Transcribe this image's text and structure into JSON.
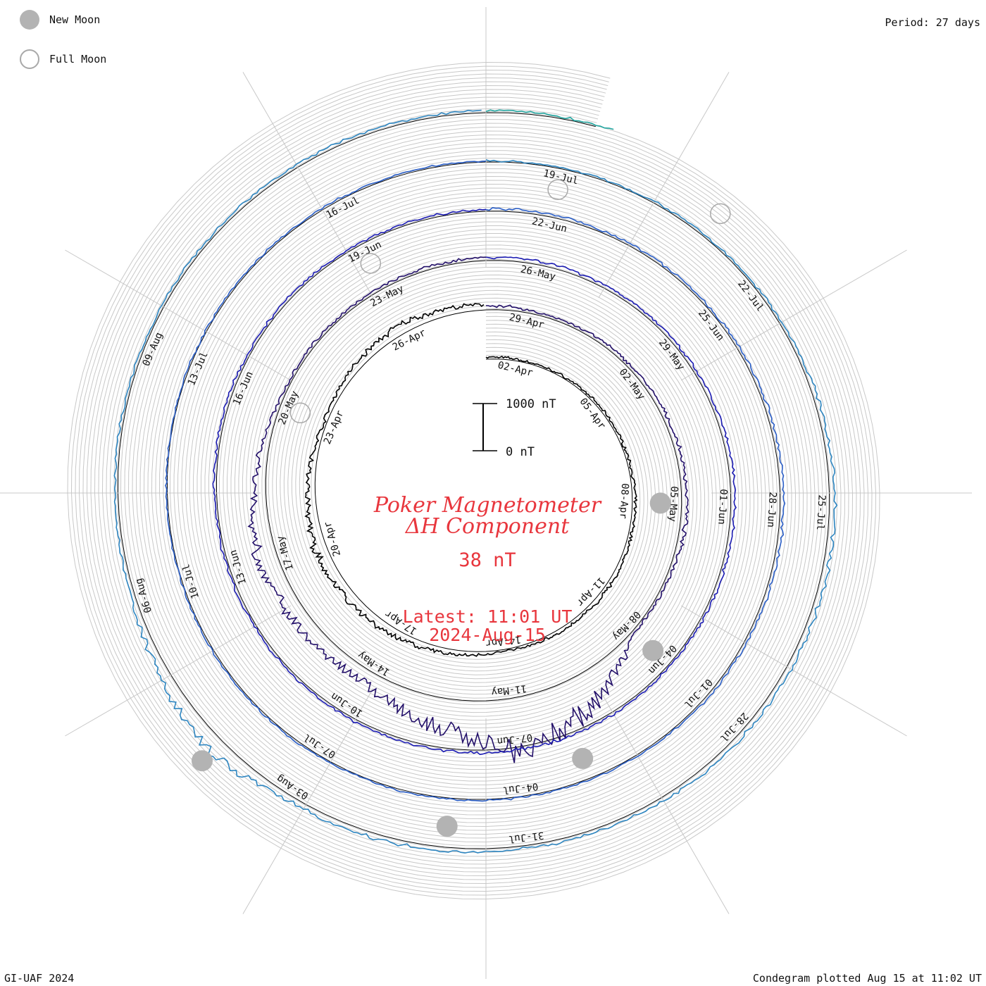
{
  "legend": {
    "new_moon": {
      "label": "New Moon",
      "color": "#b3b3b3"
    },
    "full_moon": {
      "label": "Full Moon",
      "color": "#a9a9a9"
    }
  },
  "period_label": "Period: 27 days",
  "footer": {
    "left": "GI-UAF 2024",
    "right": "Condegram plotted Aug 15 at 11:02 UT"
  },
  "chart_data": {
    "type": "line",
    "subtype": "condegram spiral",
    "title": "Poker Magnetometer",
    "subtitle": "ΔH Component",
    "current_value": "38 nT",
    "latest_time": "Latest: 11:01 UT",
    "latest_date": "2024-Aug-15",
    "scale": {
      "top_label": "1000 nT",
      "bottom_label": "0 nT",
      "range_nT": [
        0,
        1000
      ]
    },
    "period_days": 27,
    "start_date": "2024-04-01",
    "end_date": "2024-08-15",
    "date_labels": [
      "02-Apr",
      "05-Apr",
      "08-Apr",
      "11-Apr",
      "14-Apr",
      "17-Apr",
      "20-Apr",
      "23-Apr",
      "26-Apr",
      "29-Apr",
      "02-May",
      "05-May",
      "08-May",
      "11-May",
      "14-May",
      "17-May",
      "20-May",
      "23-May",
      "26-May",
      "29-May",
      "01-Jun",
      "04-Jun",
      "07-Jun",
      "10-Jun",
      "13-Jun",
      "16-Jun",
      "19-Jun",
      "22-Jun",
      "25-Jun",
      "28-Jun",
      "01-Jul",
      "04-Jul",
      "07-Jul",
      "10-Jul",
      "13-Jul",
      "16-Jul",
      "19-Jul",
      "22-Jul",
      "25-Jul",
      "28-Jul",
      "31-Jul",
      "03-Aug",
      "06-Aug",
      "09-Aug"
    ],
    "moon_phases": [
      {
        "type": "new",
        "date": "2024-04-08"
      },
      {
        "type": "full",
        "date": "2024-04-23"
      },
      {
        "type": "new",
        "date": "2024-05-08"
      },
      {
        "type": "full",
        "date": "2024-05-23"
      },
      {
        "type": "new",
        "date": "2024-06-06"
      },
      {
        "type": "full",
        "date": "2024-06-22"
      },
      {
        "type": "new",
        "date": "2024-07-05"
      },
      {
        "type": "full",
        "date": "2024-07-21"
      },
      {
        "type": "new",
        "date": "2024-08-04"
      }
    ],
    "series": [
      {
        "values": [
          {
            "date": "2024-04-02",
            "nT": 30
          },
          {
            "date": "2024-04-05",
            "nT": 40
          },
          {
            "date": "2024-04-08",
            "nT": 60
          },
          {
            "date": "2024-04-11",
            "nT": 80
          },
          {
            "date": "2024-04-14",
            "nT": 40
          },
          {
            "date": "2024-04-17",
            "nT": 150
          },
          {
            "date": "2024-04-20",
            "nT": 250
          },
          {
            "date": "2024-04-23",
            "nT": 60
          },
          {
            "date": "2024-04-26",
            "nT": 200
          },
          {
            "date": "2024-04-29",
            "nT": 50
          },
          {
            "date": "2024-05-02",
            "nT": 70
          },
          {
            "date": "2024-05-05",
            "nT": 120
          },
          {
            "date": "2024-05-08",
            "nT": 40
          },
          {
            "date": "2024-05-10",
            "nT": 900
          },
          {
            "date": "2024-05-11",
            "nT": 1100
          },
          {
            "date": "2024-05-12",
            "nT": 700
          },
          {
            "date": "2024-05-14",
            "nT": 250
          },
          {
            "date": "2024-05-17",
            "nT": 400
          },
          {
            "date": "2024-05-20",
            "nT": 60
          },
          {
            "date": "2024-05-23",
            "nT": 50
          },
          {
            "date": "2024-05-26",
            "nT": 80
          },
          {
            "date": "2024-05-29",
            "nT": 50
          },
          {
            "date": "2024-06-01",
            "nT": 90
          },
          {
            "date": "2024-06-04",
            "nT": 40
          },
          {
            "date": "2024-06-07",
            "nT": 60
          },
          {
            "date": "2024-06-10",
            "nT": 50
          },
          {
            "date": "2024-06-13",
            "nT": 40
          },
          {
            "date": "2024-06-16",
            "nT": 60
          },
          {
            "date": "2024-06-19",
            "nT": 40
          },
          {
            "date": "2024-06-22",
            "nT": 50
          },
          {
            "date": "2024-06-25",
            "nT": 40
          },
          {
            "date": "2024-06-28",
            "nT": 80
          },
          {
            "date": "2024-07-01",
            "nT": 40
          },
          {
            "date": "2024-07-04",
            "nT": 20
          },
          {
            "date": "2024-07-07",
            "nT": 30
          },
          {
            "date": "2024-07-10",
            "nT": 20
          },
          {
            "date": "2024-07-13",
            "nT": 20
          },
          {
            "date": "2024-07-16",
            "nT": 30
          },
          {
            "date": "2024-07-19",
            "nT": 20
          },
          {
            "date": "2024-07-22",
            "nT": 40
          },
          {
            "date": "2024-07-25",
            "nT": 120
          },
          {
            "date": "2024-07-28",
            "nT": 100
          },
          {
            "date": "2024-07-31",
            "nT": 60
          },
          {
            "date": "2024-08-03",
            "nT": 120
          },
          {
            "date": "2024-08-04",
            "nT": 350
          },
          {
            "date": "2024-08-06",
            "nT": 80
          },
          {
            "date": "2024-08-09",
            "nT": 40
          },
          {
            "date": "2024-08-12",
            "nT": 60
          },
          {
            "date": "2024-08-15",
            "nT": 38
          }
        ]
      }
    ],
    "colors": [
      "#000000",
      "#23106a",
      "#1c1cb4",
      "#2b5fc8",
      "#2e86c1",
      "#23a6a0",
      "#3cb46a",
      "#78c23a",
      "#b4b42a",
      "#c8961e",
      "#c8641e",
      "#c83c14",
      "#c81e14"
    ],
    "grid": true
  }
}
